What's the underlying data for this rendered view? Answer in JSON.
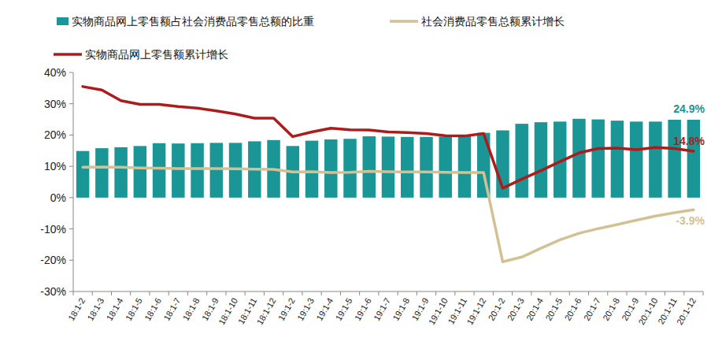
{
  "chart_data": {
    "type": "bar",
    "categories": [
      "18:1-2",
      "18:1-3",
      "18:1-4",
      "18:1-5",
      "18:1-6",
      "18:1-7",
      "18:1-8",
      "18:1-9",
      "18:1-10",
      "18:1-11",
      "18:1-12",
      "19:1-2",
      "19:1-3",
      "19:1-4",
      "19:1-5",
      "19:1-6",
      "19:1-7",
      "19:1-8",
      "19:1-9",
      "19:1-10",
      "19:1-11",
      "19:1-12",
      "20:1-2",
      "20:1-3",
      "20:1-4",
      "20:1-5",
      "20:1-6",
      "20:1-7",
      "20:1-8",
      "20:1-9",
      "20:1-10",
      "20:1-11",
      "20:1-12"
    ],
    "series": [
      {
        "name": "实物商品网上零售额占社会消费品零售总额的比重",
        "type": "bar",
        "color": "#1b9696",
        "values": [
          14.9,
          15.8,
          16.1,
          16.5,
          17.4,
          17.3,
          17.4,
          17.5,
          17.5,
          18.0,
          18.4,
          16.5,
          18.2,
          18.6,
          18.8,
          19.6,
          19.5,
          19.4,
          19.4,
          19.5,
          19.8,
          20.7,
          21.5,
          23.6,
          24.1,
          24.3,
          25.2,
          25.0,
          24.6,
          24.3,
          24.3,
          24.9,
          24.9
        ],
        "value_labels": [
          null,
          null,
          null,
          null,
          null,
          null,
          null,
          null,
          null,
          null,
          null,
          null,
          null,
          null,
          null,
          null,
          null,
          null,
          null,
          null,
          null,
          null,
          null,
          null,
          null,
          null,
          null,
          null,
          null,
          null,
          null,
          null,
          "24.9%"
        ]
      },
      {
        "name": "社会消费品零售总额累计增长",
        "type": "line",
        "color": "#d3c194",
        "values": [
          9.7,
          9.8,
          9.7,
          9.5,
          9.4,
          9.3,
          9.3,
          9.3,
          9.2,
          9.1,
          9.0,
          8.2,
          8.3,
          8.0,
          8.1,
          8.4,
          8.3,
          8.2,
          8.2,
          8.1,
          8.0,
          8.0,
          -20.5,
          -19.0,
          -16.2,
          -13.5,
          -11.4,
          -9.9,
          -8.6,
          -7.2,
          -5.9,
          -4.8,
          -3.9
        ],
        "value_labels": [
          null,
          null,
          null,
          null,
          null,
          null,
          null,
          null,
          null,
          null,
          null,
          null,
          null,
          null,
          null,
          null,
          null,
          null,
          null,
          null,
          null,
          null,
          null,
          null,
          null,
          null,
          null,
          null,
          null,
          null,
          null,
          null,
          "-3.9%"
        ]
      },
      {
        "name": "实物商品网上零售额累计增长",
        "type": "line",
        "color": "#ad1c1c",
        "values": [
          35.5,
          34.4,
          31.0,
          29.8,
          29.8,
          29.1,
          28.6,
          27.7,
          26.7,
          25.4,
          25.4,
          19.5,
          21.0,
          22.2,
          21.7,
          21.6,
          21.0,
          20.8,
          20.5,
          19.8,
          19.7,
          20.5,
          3.0,
          5.9,
          8.6,
          11.5,
          14.3,
          15.7,
          15.8,
          15.3,
          16.0,
          15.7,
          14.8
        ],
        "value_labels": [
          null,
          null,
          null,
          null,
          null,
          null,
          null,
          null,
          null,
          null,
          null,
          null,
          null,
          null,
          null,
          null,
          null,
          null,
          null,
          null,
          null,
          null,
          null,
          null,
          null,
          null,
          null,
          null,
          null,
          null,
          null,
          null,
          "14.8%"
        ]
      }
    ],
    "ylim": [
      -30,
      40
    ],
    "yticks": [
      {
        "value": -30,
        "label": "-30%"
      },
      {
        "value": -20,
        "label": "-20%"
      },
      {
        "value": -10,
        "label": "-10%"
      },
      {
        "value": 0,
        "label": "0%"
      },
      {
        "value": 10,
        "label": "10%"
      },
      {
        "value": 20,
        "label": "20%"
      },
      {
        "value": 30,
        "label": "30%"
      },
      {
        "value": 40,
        "label": "40%"
      }
    ],
    "grid": false,
    "legend": "top"
  }
}
